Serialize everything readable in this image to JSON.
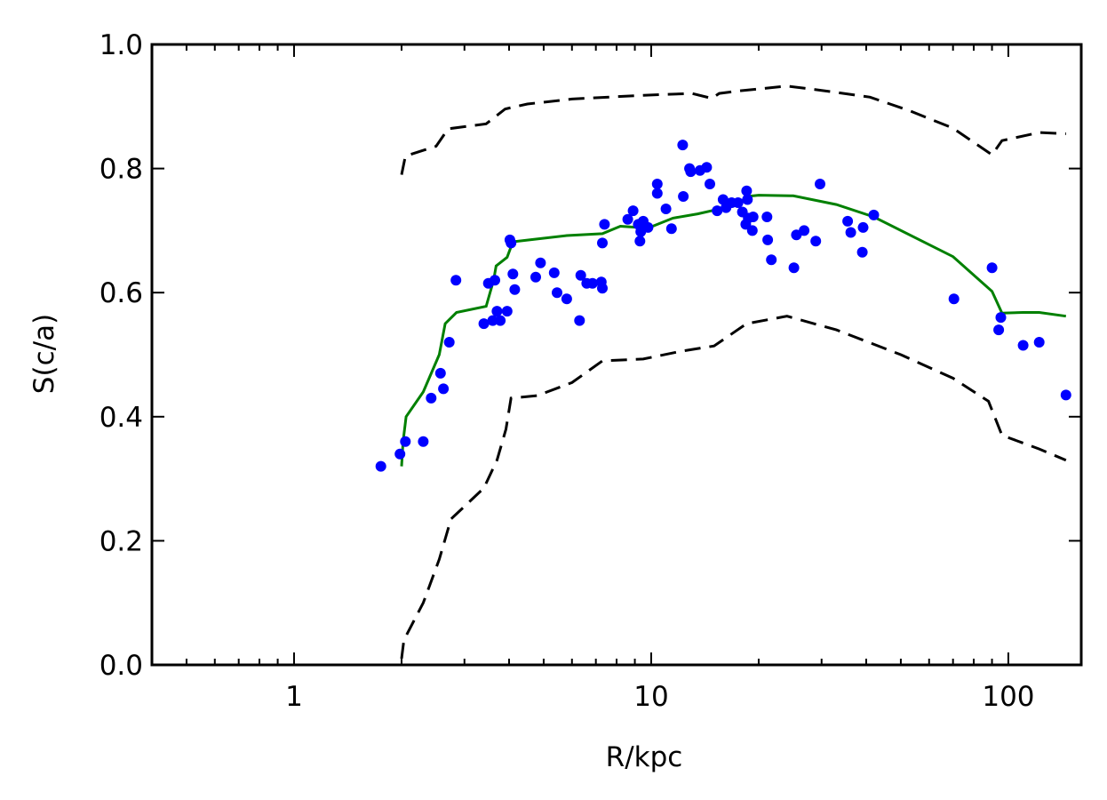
{
  "chart_data": {
    "type": "scatter",
    "xlabel": "R/kpc",
    "ylabel": "S(c/a)",
    "xscale": "log",
    "xlim": [
      0.4,
      160
    ],
    "ylim": [
      0.0,
      1.0
    ],
    "grid": false,
    "x_ticks": [
      {
        "value": 1,
        "label": "1"
      },
      {
        "value": 10,
        "label": "10"
      },
      {
        "value": 100,
        "label": "100"
      }
    ],
    "y_ticks": [
      {
        "value": 0.0,
        "label": "0.0"
      },
      {
        "value": 0.2,
        "label": "0.2"
      },
      {
        "value": 0.4,
        "label": "0.4"
      },
      {
        "value": 0.6,
        "label": "0.6"
      },
      {
        "value": 0.8,
        "label": "0.8"
      },
      {
        "value": 1.0,
        "label": "1.0"
      }
    ],
    "colors": {
      "points": "#0000ff",
      "median_line": "#008000",
      "bounds": "#000000"
    },
    "points": [
      [
        1.75,
        0.32
      ],
      [
        1.98,
        0.34
      ],
      [
        2.05,
        0.36
      ],
      [
        2.3,
        0.36
      ],
      [
        2.42,
        0.43
      ],
      [
        2.57,
        0.47
      ],
      [
        2.62,
        0.445
      ],
      [
        2.72,
        0.52
      ],
      [
        2.84,
        0.62
      ],
      [
        3.4,
        0.55
      ],
      [
        3.5,
        0.615
      ],
      [
        3.6,
        0.555
      ],
      [
        3.65,
        0.62
      ],
      [
        3.7,
        0.57
      ],
      [
        3.78,
        0.555
      ],
      [
        3.95,
        0.57
      ],
      [
        4.02,
        0.685
      ],
      [
        4.05,
        0.68
      ],
      [
        4.1,
        0.63
      ],
      [
        4.15,
        0.605
      ],
      [
        4.75,
        0.625
      ],
      [
        4.9,
        0.648
      ],
      [
        5.35,
        0.632
      ],
      [
        5.45,
        0.6
      ],
      [
        5.8,
        0.59
      ],
      [
        6.3,
        0.555
      ],
      [
        6.35,
        0.628
      ],
      [
        6.6,
        0.615
      ],
      [
        6.85,
        0.615
      ],
      [
        7.25,
        0.617
      ],
      [
        7.3,
        0.607
      ],
      [
        7.3,
        0.68
      ],
      [
        7.4,
        0.71
      ],
      [
        8.6,
        0.718
      ],
      [
        8.9,
        0.732
      ],
      [
        9.2,
        0.71
      ],
      [
        9.3,
        0.683
      ],
      [
        9.35,
        0.698
      ],
      [
        9.5,
        0.715
      ],
      [
        9.8,
        0.705
      ],
      [
        10.4,
        0.775
      ],
      [
        10.4,
        0.76
      ],
      [
        11.0,
        0.735
      ],
      [
        11.4,
        0.703
      ],
      [
        12.25,
        0.838
      ],
      [
        12.3,
        0.755
      ],
      [
        12.8,
        0.8
      ],
      [
        12.9,
        0.795
      ],
      [
        13.7,
        0.797
      ],
      [
        14.3,
        0.802
      ],
      [
        14.6,
        0.775
      ],
      [
        15.3,
        0.732
      ],
      [
        15.9,
        0.75
      ],
      [
        16.2,
        0.737
      ],
      [
        16.8,
        0.745
      ],
      [
        17.5,
        0.745
      ],
      [
        18.0,
        0.73
      ],
      [
        18.4,
        0.71
      ],
      [
        18.5,
        0.764
      ],
      [
        18.6,
        0.75
      ],
      [
        18.7,
        0.72
      ],
      [
        19.2,
        0.7
      ],
      [
        19.3,
        0.722
      ],
      [
        21.1,
        0.722
      ],
      [
        21.2,
        0.685
      ],
      [
        21.7,
        0.653
      ],
      [
        25.1,
        0.64
      ],
      [
        25.5,
        0.693
      ],
      [
        26.8,
        0.7
      ],
      [
        28.9,
        0.683
      ],
      [
        29.7,
        0.775
      ],
      [
        35.5,
        0.715
      ],
      [
        36.2,
        0.697
      ],
      [
        39.0,
        0.665
      ],
      [
        39.2,
        0.705
      ],
      [
        42.0,
        0.725
      ],
      [
        70.4,
        0.59
      ],
      [
        90.0,
        0.64
      ],
      [
        94.0,
        0.54
      ],
      [
        95.3,
        0.56
      ],
      [
        110.0,
        0.515
      ],
      [
        122.0,
        0.52
      ],
      [
        145.0,
        0.435
      ]
    ],
    "median_line": [
      [
        2.0,
        0.32
      ],
      [
        2.02,
        0.36
      ],
      [
        2.06,
        0.4
      ],
      [
        2.3,
        0.44
      ],
      [
        2.55,
        0.5
      ],
      [
        2.65,
        0.55
      ],
      [
        2.85,
        0.568
      ],
      [
        3.45,
        0.578
      ],
      [
        3.62,
        0.62
      ],
      [
        3.68,
        0.643
      ],
      [
        3.95,
        0.657
      ],
      [
        4.1,
        0.682
      ],
      [
        4.7,
        0.686
      ],
      [
        5.8,
        0.692
      ],
      [
        7.3,
        0.695
      ],
      [
        8.2,
        0.707
      ],
      [
        9.8,
        0.704
      ],
      [
        11.5,
        0.72
      ],
      [
        13.5,
        0.727
      ],
      [
        15.3,
        0.734
      ],
      [
        17.5,
        0.741
      ],
      [
        18.5,
        0.755
      ],
      [
        20.0,
        0.757
      ],
      [
        25.0,
        0.756
      ],
      [
        33.0,
        0.742
      ],
      [
        42.0,
        0.722
      ],
      [
        70.0,
        0.658
      ],
      [
        90.0,
        0.602
      ],
      [
        96.0,
        0.567
      ],
      [
        110.0,
        0.568
      ],
      [
        122.0,
        0.568
      ],
      [
        145.0,
        0.562
      ]
    ],
    "upper_bound": [
      [
        2.0,
        0.79
      ],
      [
        2.05,
        0.82
      ],
      [
        2.5,
        0.836
      ],
      [
        2.7,
        0.864
      ],
      [
        3.45,
        0.872
      ],
      [
        3.9,
        0.896
      ],
      [
        4.5,
        0.904
      ],
      [
        6.0,
        0.912
      ],
      [
        9.5,
        0.918
      ],
      [
        13.0,
        0.921
      ],
      [
        14.8,
        0.913
      ],
      [
        15.5,
        0.921
      ],
      [
        17.5,
        0.925
      ],
      [
        24.0,
        0.933
      ],
      [
        30.0,
        0.926
      ],
      [
        41.0,
        0.915
      ],
      [
        53.0,
        0.893
      ],
      [
        70.0,
        0.865
      ],
      [
        90.0,
        0.822
      ],
      [
        96.0,
        0.845
      ],
      [
        122.0,
        0.858
      ],
      [
        145.0,
        0.856
      ]
    ],
    "lower_bound": [
      [
        2.0,
        0.01
      ],
      [
        2.03,
        0.04
      ],
      [
        2.3,
        0.1
      ],
      [
        2.55,
        0.17
      ],
      [
        2.75,
        0.235
      ],
      [
        3.4,
        0.285
      ],
      [
        3.7,
        0.33
      ],
      [
        3.92,
        0.38
      ],
      [
        4.05,
        0.43
      ],
      [
        4.8,
        0.434
      ],
      [
        6.0,
        0.455
      ],
      [
        7.3,
        0.49
      ],
      [
        9.5,
        0.493
      ],
      [
        12.0,
        0.505
      ],
      [
        15.0,
        0.514
      ],
      [
        18.5,
        0.55
      ],
      [
        24.0,
        0.562
      ],
      [
        33.0,
        0.54
      ],
      [
        50.0,
        0.5
      ],
      [
        70.0,
        0.462
      ],
      [
        88.0,
        0.425
      ],
      [
        96.0,
        0.37
      ],
      [
        122.0,
        0.348
      ],
      [
        145.0,
        0.33
      ]
    ]
  }
}
